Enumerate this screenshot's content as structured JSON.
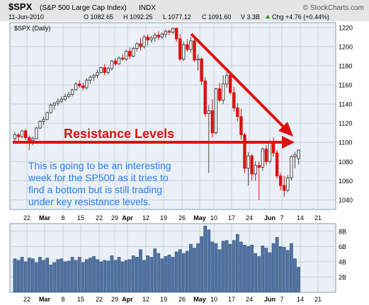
{
  "header": {
    "symbol": "$SPX",
    "name": "(S&P 500 Large Cap Index)",
    "exchange": "INDX",
    "brand": "© StockCharts.com",
    "date": "11-Jun-2010",
    "open": "O 1082.65",
    "high": "H 1092.25",
    "low": "L 1077.12",
    "close": "C 1091.60",
    "volume": "V 3.3B",
    "change": "Chg +4.76 (+0.44%)",
    "change_icon": "up-arrow-icon"
  },
  "price_panel": {
    "label": "$SPX (Daily)"
  },
  "annotation": {
    "heading": "Resistance Levels",
    "lines": [
      "This is going to be an interesting",
      "week for the SP500 as it tries to",
      "find a bottom but is still trading",
      "under key resistance levels."
    ]
  },
  "colors": {
    "panel_bg": "#eaf0f6",
    "grid": "#c8d2de",
    "up_candle": "#4a4a4a",
    "down_candle": "#e01010",
    "volume_bar": "#4f73a3",
    "annotation_red": "#e01010",
    "annotation_blue": "#2a7ff0",
    "header_bg": "#e5e5e5"
  },
  "chart_data": [
    {
      "type": "candlestick",
      "title": "$SPX (Daily)",
      "ylim": [
        1030,
        1225
      ],
      "y_ticks": [
        1040,
        1060,
        1080,
        1100,
        1120,
        1140,
        1160,
        1180,
        1200,
        1220
      ],
      "x_tick_labels": [
        "22",
        "Mar",
        "8",
        "15",
        "22",
        "29",
        "Apr",
        "12",
        "19",
        "26",
        "May",
        "10",
        "17",
        "24",
        "Jun",
        "7",
        "14",
        "21"
      ],
      "bars": [
        {
          "o": 1104,
          "h": 1111,
          "l": 1100,
          "c": 1108
        },
        {
          "o": 1108,
          "h": 1110,
          "l": 1101,
          "c": 1106
        },
        {
          "o": 1106,
          "h": 1113,
          "l": 1104,
          "c": 1112
        },
        {
          "o": 1112,
          "h": 1114,
          "l": 1103,
          "c": 1105
        },
        {
          "o": 1105,
          "h": 1107,
          "l": 1092,
          "c": 1102
        },
        {
          "o": 1102,
          "h": 1106,
          "l": 1097,
          "c": 1104
        },
        {
          "o": 1104,
          "h": 1116,
          "l": 1103,
          "c": 1115
        },
        {
          "o": 1115,
          "h": 1123,
          "l": 1114,
          "c": 1122
        },
        {
          "o": 1122,
          "h": 1127,
          "l": 1118,
          "c": 1124
        },
        {
          "o": 1124,
          "h": 1132,
          "l": 1123,
          "c": 1131
        },
        {
          "o": 1131,
          "h": 1141,
          "l": 1130,
          "c": 1139
        },
        {
          "o": 1139,
          "h": 1142,
          "l": 1134,
          "c": 1141
        },
        {
          "o": 1141,
          "h": 1146,
          "l": 1138,
          "c": 1143
        },
        {
          "o": 1143,
          "h": 1148,
          "l": 1141,
          "c": 1145
        },
        {
          "o": 1145,
          "h": 1151,
          "l": 1143,
          "c": 1148
        },
        {
          "o": 1148,
          "h": 1153,
          "l": 1146,
          "c": 1150
        },
        {
          "o": 1150,
          "h": 1156,
          "l": 1148,
          "c": 1155
        },
        {
          "o": 1155,
          "h": 1163,
          "l": 1154,
          "c": 1161
        },
        {
          "o": 1161,
          "h": 1165,
          "l": 1157,
          "c": 1159
        },
        {
          "o": 1159,
          "h": 1162,
          "l": 1154,
          "c": 1157
        },
        {
          "o": 1157,
          "h": 1167,
          "l": 1155,
          "c": 1165
        },
        {
          "o": 1165,
          "h": 1170,
          "l": 1161,
          "c": 1168
        },
        {
          "o": 1168,
          "h": 1172,
          "l": 1164,
          "c": 1170
        },
        {
          "o": 1170,
          "h": 1176,
          "l": 1167,
          "c": 1173
        },
        {
          "o": 1173,
          "h": 1179,
          "l": 1172,
          "c": 1178
        },
        {
          "o": 1178,
          "h": 1182,
          "l": 1170,
          "c": 1173
        },
        {
          "o": 1173,
          "h": 1179,
          "l": 1171,
          "c": 1177
        },
        {
          "o": 1177,
          "h": 1186,
          "l": 1175,
          "c": 1185
        },
        {
          "o": 1185,
          "h": 1188,
          "l": 1180,
          "c": 1182
        },
        {
          "o": 1182,
          "h": 1190,
          "l": 1181,
          "c": 1188
        },
        {
          "o": 1188,
          "h": 1192,
          "l": 1185,
          "c": 1187
        },
        {
          "o": 1187,
          "h": 1197,
          "l": 1185,
          "c": 1195
        },
        {
          "o": 1195,
          "h": 1199,
          "l": 1187,
          "c": 1190
        },
        {
          "o": 1190,
          "h": 1200,
          "l": 1189,
          "c": 1198
        },
        {
          "o": 1198,
          "h": 1205,
          "l": 1195,
          "c": 1203
        },
        {
          "o": 1203,
          "h": 1209,
          "l": 1196,
          "c": 1200
        },
        {
          "o": 1200,
          "h": 1212,
          "l": 1198,
          "c": 1210
        },
        {
          "o": 1210,
          "h": 1213,
          "l": 1201,
          "c": 1207
        },
        {
          "o": 1207,
          "h": 1211,
          "l": 1204,
          "c": 1209
        },
        {
          "o": 1209,
          "h": 1214,
          "l": 1205,
          "c": 1212
        },
        {
          "o": 1212,
          "h": 1216,
          "l": 1207,
          "c": 1210
        },
        {
          "o": 1210,
          "h": 1215,
          "l": 1208,
          "c": 1213
        },
        {
          "o": 1213,
          "h": 1218,
          "l": 1209,
          "c": 1216
        },
        {
          "o": 1216,
          "h": 1218,
          "l": 1212,
          "c": 1215
        },
        {
          "o": 1215,
          "h": 1220,
          "l": 1213,
          "c": 1219
        },
        {
          "o": 1219,
          "h": 1220,
          "l": 1205,
          "c": 1208
        },
        {
          "o": 1208,
          "h": 1213,
          "l": 1185,
          "c": 1187
        },
        {
          "o": 1187,
          "h": 1205,
          "l": 1185,
          "c": 1202
        },
        {
          "o": 1202,
          "h": 1208,
          "l": 1195,
          "c": 1197
        },
        {
          "o": 1197,
          "h": 1210,
          "l": 1194,
          "c": 1206
        },
        {
          "o": 1206,
          "h": 1208,
          "l": 1184,
          "c": 1186
        },
        {
          "o": 1186,
          "h": 1192,
          "l": 1175,
          "c": 1187
        },
        {
          "o": 1187,
          "h": 1189,
          "l": 1160,
          "c": 1164
        },
        {
          "o": 1164,
          "h": 1168,
          "l": 1127,
          "c": 1130
        },
        {
          "o": 1130,
          "h": 1139,
          "l": 1068,
          "c": 1133
        },
        {
          "o": 1133,
          "h": 1145,
          "l": 1105,
          "c": 1110
        },
        {
          "o": 1110,
          "h": 1157,
          "l": 1108,
          "c": 1156
        },
        {
          "o": 1156,
          "h": 1162,
          "l": 1142,
          "c": 1144
        },
        {
          "o": 1144,
          "h": 1170,
          "l": 1140,
          "c": 1161
        },
        {
          "o": 1161,
          "h": 1173,
          "l": 1157,
          "c": 1170
        },
        {
          "o": 1170,
          "h": 1172,
          "l": 1150,
          "c": 1152
        },
        {
          "o": 1152,
          "h": 1158,
          "l": 1132,
          "c": 1136
        },
        {
          "o": 1136,
          "h": 1141,
          "l": 1122,
          "c": 1127
        },
        {
          "o": 1127,
          "h": 1135,
          "l": 1103,
          "c": 1108
        },
        {
          "o": 1108,
          "h": 1110,
          "l": 1068,
          "c": 1073
        },
        {
          "o": 1073,
          "h": 1090,
          "l": 1055,
          "c": 1086
        },
        {
          "o": 1086,
          "h": 1088,
          "l": 1060,
          "c": 1067
        },
        {
          "o": 1067,
          "h": 1080,
          "l": 1060,
          "c": 1076
        },
        {
          "o": 1076,
          "h": 1080,
          "l": 1040,
          "c": 1074
        },
        {
          "o": 1074,
          "h": 1095,
          "l": 1070,
          "c": 1093
        },
        {
          "o": 1093,
          "h": 1097,
          "l": 1076,
          "c": 1080
        },
        {
          "o": 1080,
          "h": 1102,
          "l": 1078,
          "c": 1100
        },
        {
          "o": 1100,
          "h": 1105,
          "l": 1085,
          "c": 1089
        },
        {
          "o": 1089,
          "h": 1092,
          "l": 1062,
          "c": 1065
        },
        {
          "o": 1065,
          "h": 1068,
          "l": 1050,
          "c": 1055
        },
        {
          "o": 1055,
          "h": 1065,
          "l": 1043,
          "c": 1050
        },
        {
          "o": 1050,
          "h": 1066,
          "l": 1048,
          "c": 1063
        },
        {
          "o": 1063,
          "h": 1087,
          "l": 1060,
          "c": 1085
        },
        {
          "o": 1085,
          "h": 1090,
          "l": 1073,
          "c": 1087
        },
        {
          "o": 1083,
          "h": 1092,
          "l": 1077,
          "c": 1092
        }
      ]
    },
    {
      "type": "bar",
      "title": "Volume",
      "ylim": [
        0,
        9
      ],
      "y_ticks": [
        2,
        4,
        6,
        8
      ],
      "y_tick_labels": [
        "2B",
        "4B",
        "6B",
        "8B"
      ],
      "x_tick_labels": [
        "22",
        "Mar",
        "8",
        "15",
        "22",
        "29",
        "Apr",
        "12",
        "19",
        "26",
        "May",
        "10",
        "17",
        "24",
        "Jun",
        "7",
        "14",
        "21"
      ],
      "values": [
        4.4,
        4.2,
        4.6,
        4.0,
        4.5,
        4.4,
        3.9,
        4.6,
        4.2,
        4.5,
        3.6,
        3.9,
        4.3,
        4.4,
        4.0,
        4.1,
        4.6,
        4.2,
        4.6,
        3.9,
        4.3,
        4.5,
        4.7,
        4.3,
        4.0,
        4.2,
        4.1,
        4.8,
        4.2,
        4.6,
        4.0,
        4.2,
        4.3,
        4.8,
        4.6,
        5.6,
        4.2,
        4.8,
        4.6,
        5.7,
        5.1,
        4.4,
        4.7,
        4.9,
        4.6,
        5.3,
        5.6,
        5.1,
        5.4,
        6.3,
        5.8,
        6.4,
        7.3,
        8.7,
        8.2,
        6.6,
        6.4,
        5.6,
        6.7,
        6.8,
        6.3,
        6.8,
        7.6,
        6.6,
        6.2,
        6.0,
        6.2,
        5.1,
        4.7,
        6.1,
        5.8,
        5.2,
        6.4,
        7.2,
        6.0,
        5.9,
        5.5,
        6.4,
        4.4,
        3.3
      ]
    }
  ]
}
